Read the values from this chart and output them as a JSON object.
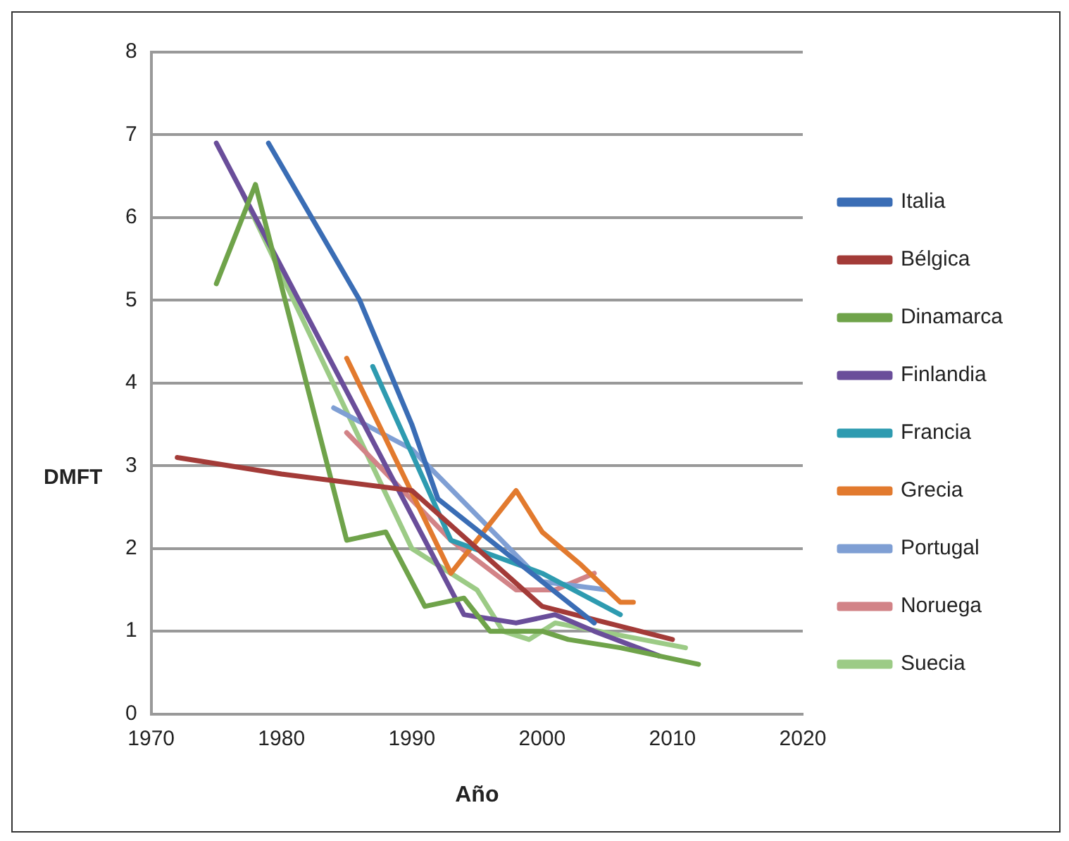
{
  "chart_data": {
    "type": "line",
    "xlabel": "Año",
    "ylabel": "DMFT",
    "xlim": [
      1970,
      2020
    ],
    "xticks": [
      1970,
      1980,
      1990,
      2000,
      2010,
      2020
    ],
    "ylim": [
      0,
      8
    ],
    "yticks": [
      0,
      1,
      2,
      3,
      4,
      5,
      6,
      7,
      8
    ],
    "grid": "y",
    "legend": "right",
    "marker": "none",
    "line_style": "solid",
    "series": [
      {
        "name": "Italia",
        "color": "#3a6db5",
        "x": [
          1979,
          1986,
          1990,
          1992,
          2000,
          2004
        ],
        "values": [
          6.9,
          5.0,
          3.5,
          2.6,
          1.6,
          1.1
        ]
      },
      {
        "name": "Bélgica",
        "color": "#a33b38",
        "x": [
          1972,
          1980,
          1990,
          1995,
          2000,
          2010
        ],
        "values": [
          3.1,
          2.9,
          2.7,
          2.0,
          1.3,
          0.9
        ]
      },
      {
        "name": "Dinamarca",
        "color": "#6fa34a",
        "x": [
          1975,
          1978,
          1985,
          1988,
          1991,
          1994,
          1996,
          2000,
          2002,
          2006,
          2012
        ],
        "values": [
          5.2,
          6.4,
          2.1,
          2.2,
          1.3,
          1.4,
          1.0,
          1.0,
          0.9,
          0.8,
          0.6
        ]
      },
      {
        "name": "Finlandia",
        "color": "#6a4e9a",
        "x": [
          1975,
          1994,
          1998,
          2001,
          2004,
          2009
        ],
        "values": [
          6.9,
          1.2,
          1.1,
          1.2,
          1.0,
          0.7
        ]
      },
      {
        "name": "Francia",
        "color": "#2e9bb0",
        "x": [
          1987,
          1993,
          2000,
          2006
        ],
        "values": [
          4.2,
          2.1,
          1.7,
          1.2
        ]
      },
      {
        "name": "Grecia",
        "color": "#e27a2e",
        "x": [
          1985,
          1993,
          1998,
          2000,
          2003,
          2006,
          2007
        ],
        "values": [
          4.3,
          1.7,
          2.7,
          2.2,
          1.8,
          1.35,
          1.35
        ]
      },
      {
        "name": "Portugal",
        "color": "#7f9fd4",
        "x": [
          1984,
          1990,
          2000,
          2005
        ],
        "values": [
          3.7,
          3.2,
          1.6,
          1.5
        ]
      },
      {
        "name": "Noruega",
        "color": "#d28387",
        "x": [
          1985,
          1993,
          1998,
          2001,
          2004
        ],
        "values": [
          3.4,
          2.1,
          1.5,
          1.5,
          1.7
        ]
      },
      {
        "name": "Suecia",
        "color": "#9ccb86",
        "x": [
          1977,
          1990,
          1995,
          1997,
          1999,
          2001,
          2011
        ],
        "values": [
          6.3,
          2.0,
          1.5,
          1.0,
          0.9,
          1.1,
          0.8
        ]
      }
    ]
  }
}
